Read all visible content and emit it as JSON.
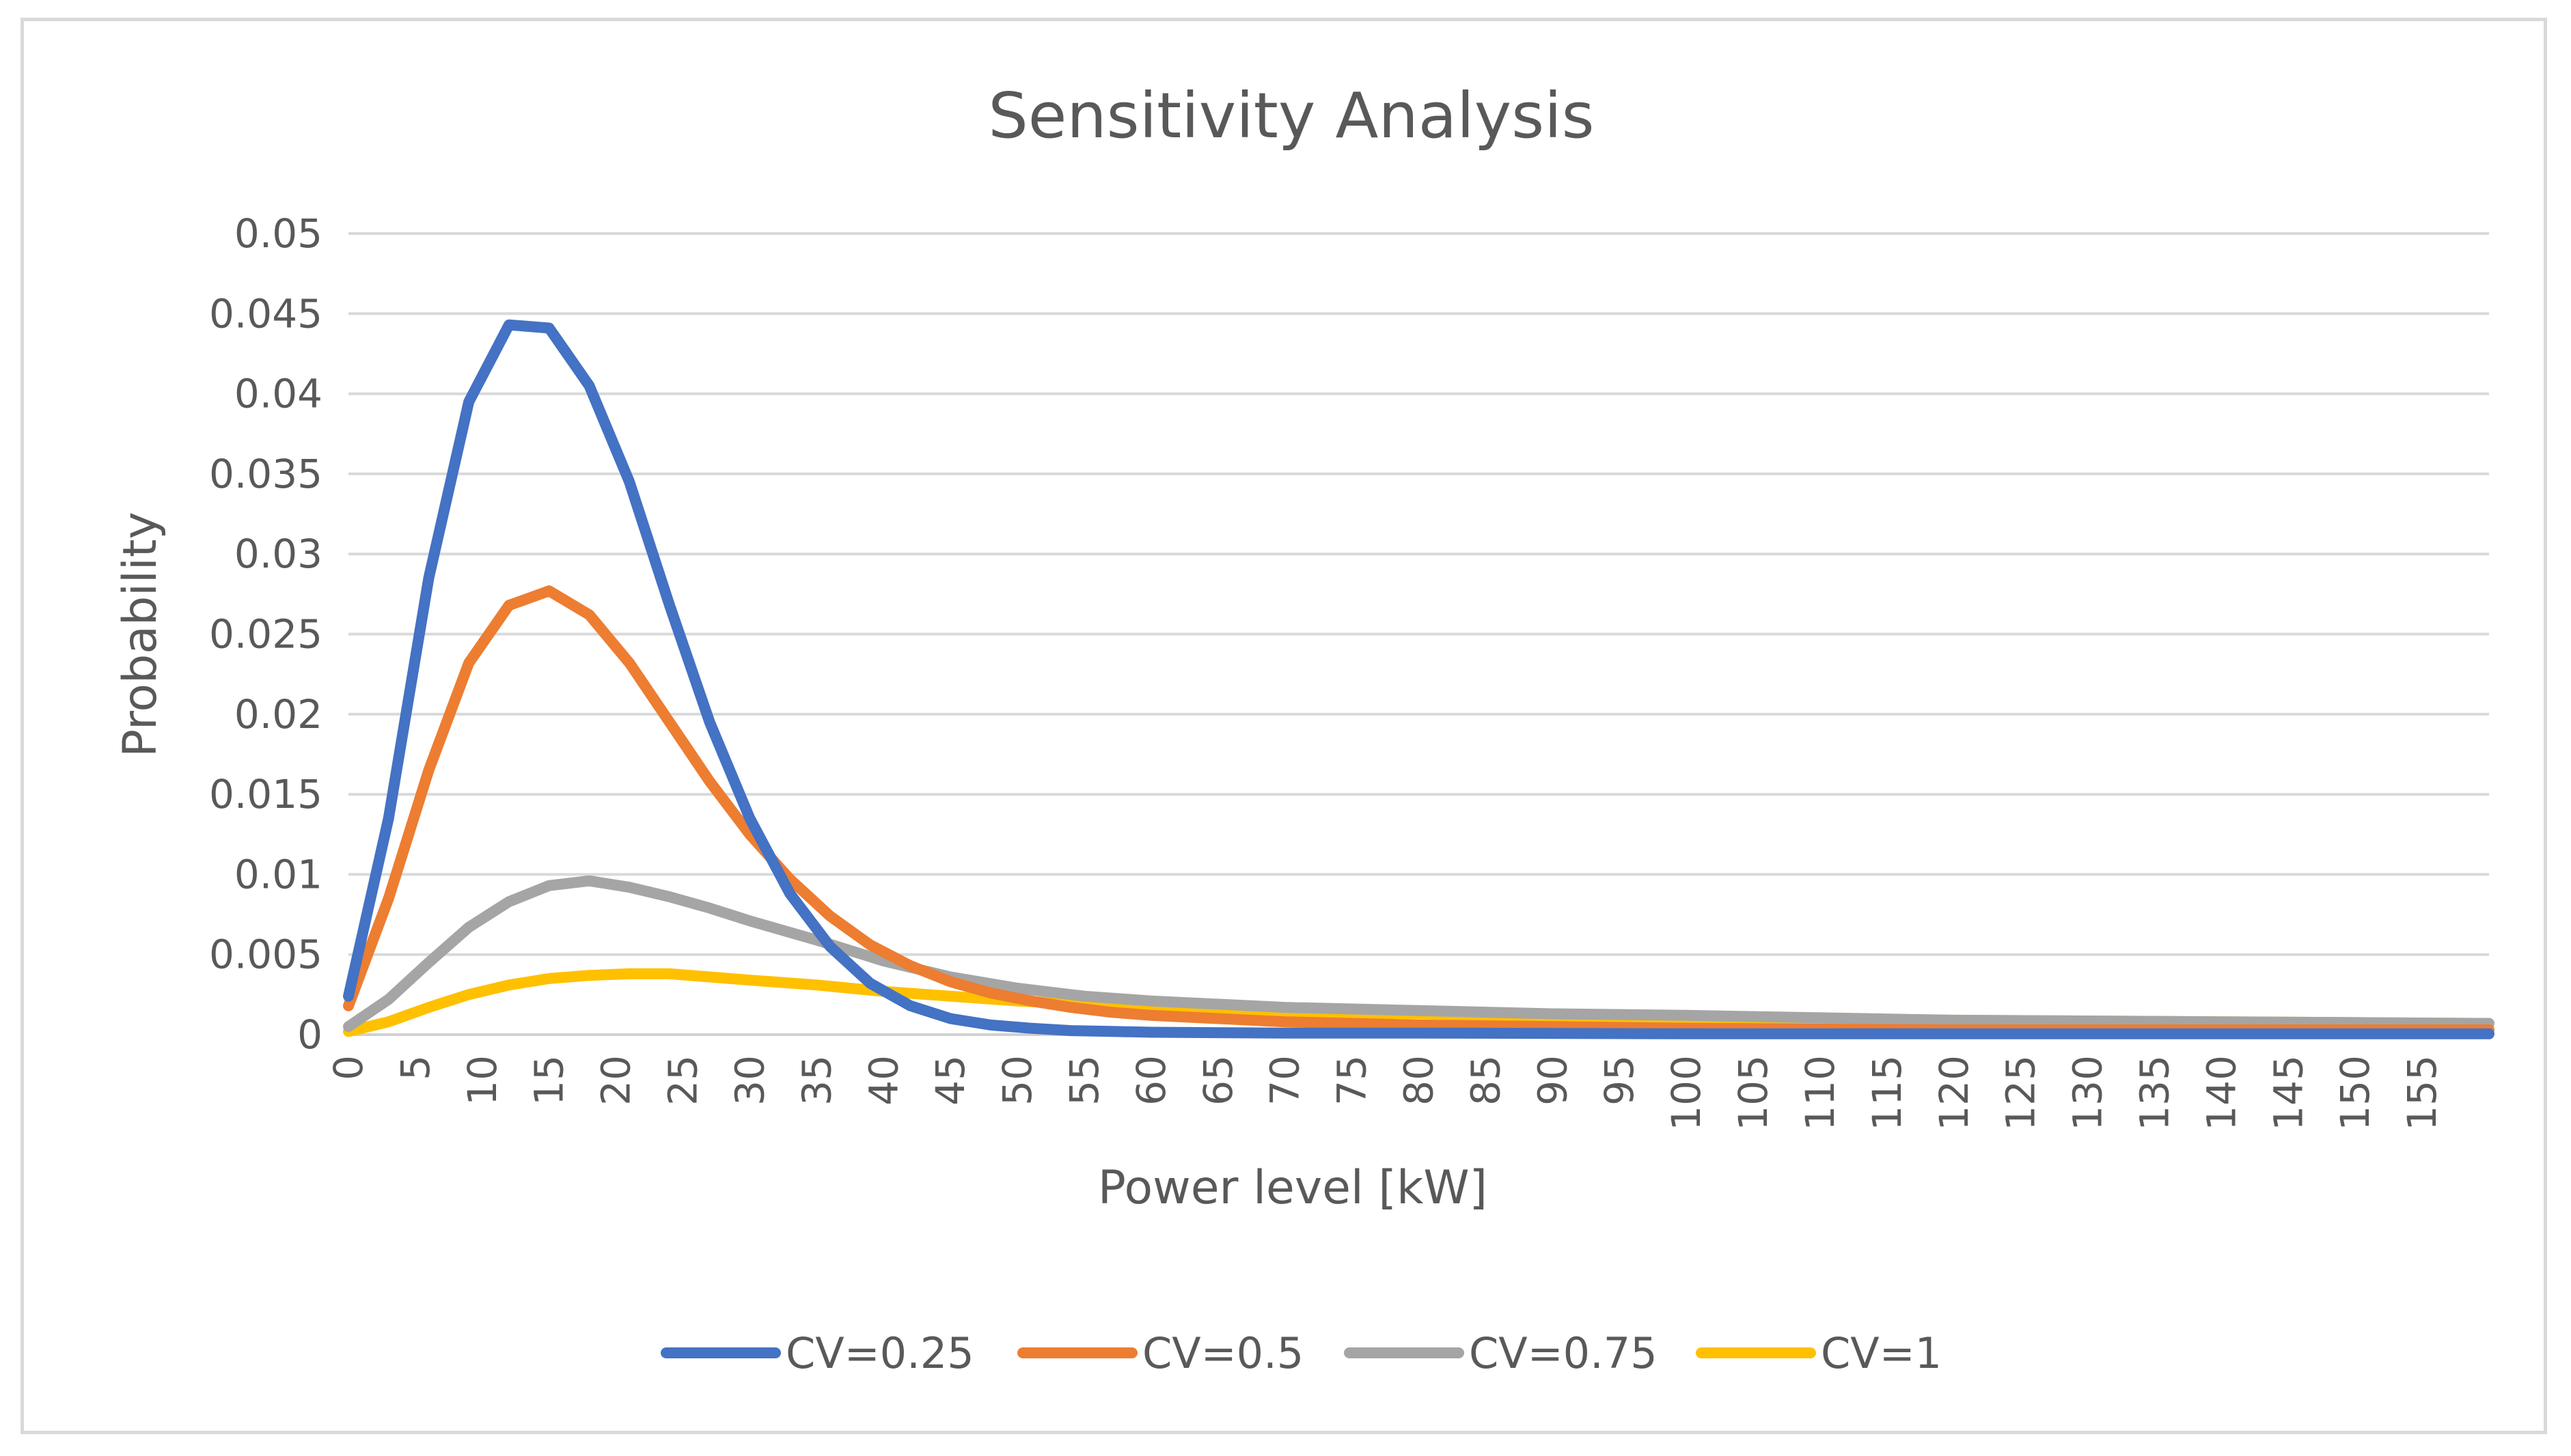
{
  "chart_data": {
    "type": "line",
    "title": "Sensitivity Analysis",
    "xlabel": "Power level [kW]",
    "ylabel": "Probability",
    "xlim": [
      0,
      160
    ],
    "ylim": [
      0,
      0.05
    ],
    "yticks": [
      "0",
      "0.005",
      "0.01",
      "0.015",
      "0.02",
      "0.025",
      "0.03",
      "0.035",
      "0.04",
      "0.045",
      "0.05"
    ],
    "xticks": [
      "0",
      "5",
      "10",
      "15",
      "20",
      "25",
      "30",
      "35",
      "40",
      "45",
      "50",
      "55",
      "60",
      "65",
      "70",
      "75",
      "80",
      "85",
      "90",
      "95",
      "100",
      "105",
      "110",
      "115",
      "120",
      "125",
      "130",
      "135",
      "140",
      "145",
      "150",
      "155"
    ],
    "grid": "horizontal",
    "legend_position": "bottom",
    "series": [
      {
        "name": "CV=0.25",
        "color": "#4472C4",
        "x": [
          0,
          3,
          6,
          9,
          12,
          15,
          18,
          21,
          24,
          27,
          30,
          33,
          36,
          39,
          42,
          45,
          48,
          51,
          54,
          57,
          60,
          70,
          80,
          100,
          120,
          140,
          160
        ],
        "y": [
          0.0024,
          0.0135,
          0.0285,
          0.0395,
          0.0443,
          0.0441,
          0.0405,
          0.0345,
          0.0268,
          0.0195,
          0.0135,
          0.0088,
          0.0055,
          0.0032,
          0.0018,
          0.001,
          0.0006,
          0.0004,
          0.00025,
          0.0002,
          0.00015,
          0.0001,
          0.0001,
          5e-05,
          5e-05,
          5e-05,
          5e-05
        ]
      },
      {
        "name": "CV=0.5",
        "color": "#ED7D31",
        "x": [
          0,
          3,
          6,
          9,
          12,
          15,
          18,
          21,
          24,
          27,
          30,
          33,
          36,
          39,
          42,
          45,
          48,
          51,
          54,
          57,
          60,
          70,
          80,
          100,
          120,
          140,
          160
        ],
        "y": [
          0.0018,
          0.0085,
          0.0165,
          0.0232,
          0.0268,
          0.0277,
          0.0262,
          0.0232,
          0.0195,
          0.0158,
          0.0125,
          0.0097,
          0.0074,
          0.0056,
          0.0043,
          0.0033,
          0.0026,
          0.0021,
          0.0017,
          0.0014,
          0.0012,
          0.0008,
          0.0006,
          0.0004,
          0.0003,
          0.0003,
          0.0003
        ]
      },
      {
        "name": "CV=0.75",
        "color": "#A5A5A5",
        "x": [
          0,
          3,
          6,
          9,
          12,
          15,
          18,
          21,
          24,
          27,
          30,
          35,
          40,
          45,
          50,
          55,
          60,
          70,
          80,
          90,
          100,
          120,
          140,
          160
        ],
        "y": [
          0.0005,
          0.0022,
          0.0045,
          0.0067,
          0.0083,
          0.0093,
          0.0096,
          0.0092,
          0.0086,
          0.0079,
          0.0071,
          0.0059,
          0.0046,
          0.0036,
          0.0029,
          0.0024,
          0.0021,
          0.0017,
          0.0015,
          0.0013,
          0.0012,
          0.0009,
          0.0008,
          0.0007
        ]
      },
      {
        "name": "CV=1",
        "color": "#FFC000",
        "x": [
          0,
          3,
          6,
          9,
          12,
          15,
          18,
          21,
          24,
          27,
          30,
          35,
          40,
          45,
          50,
          55,
          60,
          70,
          80,
          90,
          100,
          120,
          140,
          160
        ],
        "y": [
          0.0002,
          0.0008,
          0.0017,
          0.0025,
          0.0031,
          0.0035,
          0.0037,
          0.0038,
          0.0038,
          0.0036,
          0.0034,
          0.0031,
          0.0027,
          0.0024,
          0.0021,
          0.0019,
          0.0017,
          0.0014,
          0.0013,
          0.0011,
          0.001,
          0.0009,
          0.0008,
          0.0007
        ]
      }
    ]
  }
}
